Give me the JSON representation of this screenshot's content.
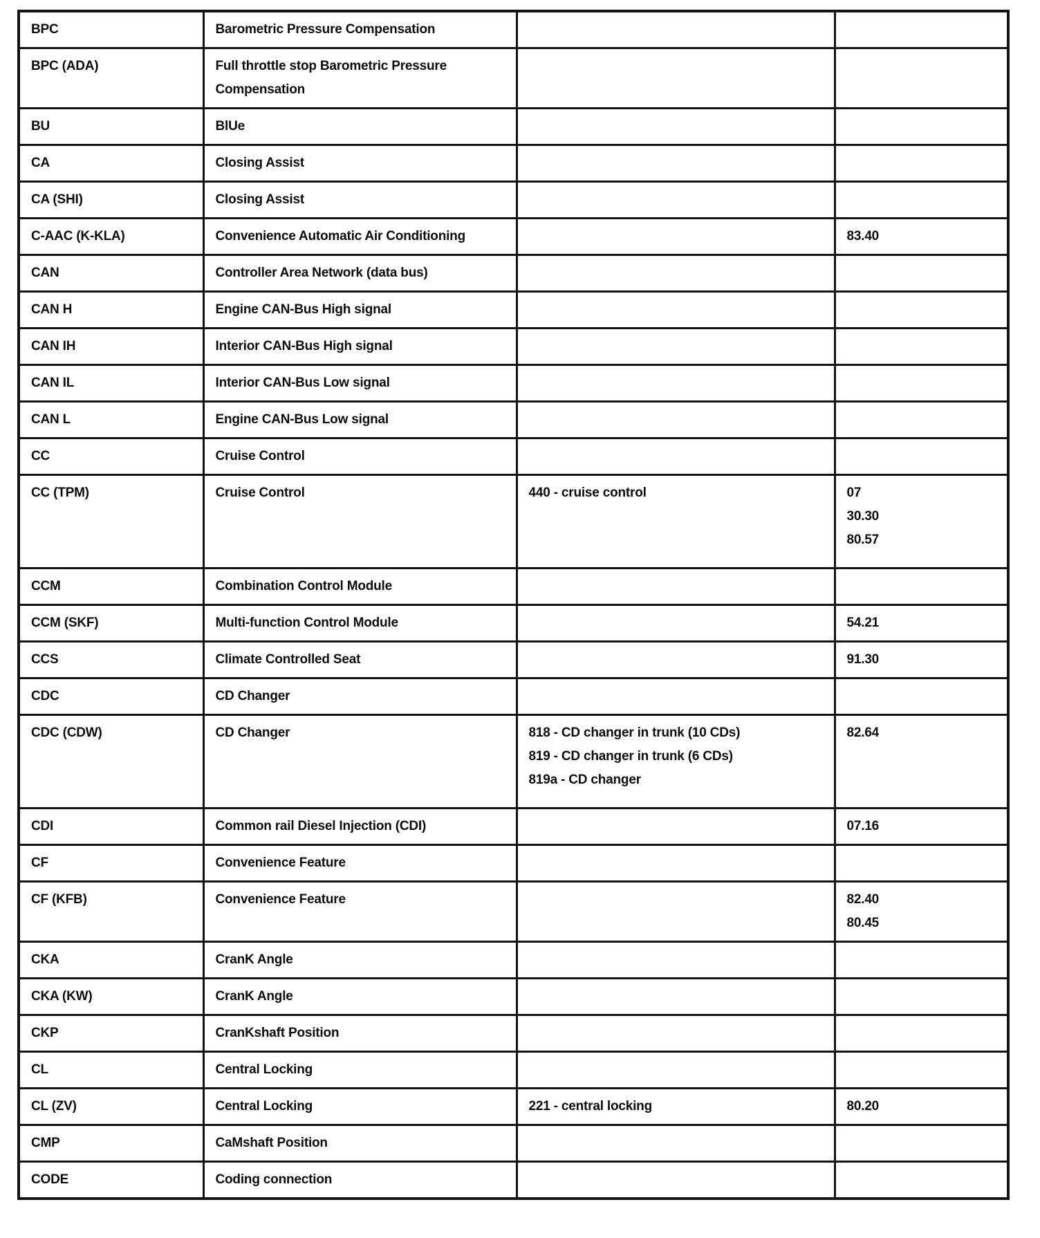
{
  "colors": {
    "background": "#ffffff",
    "border": "#131313",
    "text": "#0c0c0c"
  },
  "table": {
    "rows": [
      {
        "abbr": "BPC",
        "description": "Barometric Pressure Compensation",
        "codes": [],
        "refs": []
      },
      {
        "abbr": "BPC (ADA)",
        "description": "Full throttle stop Barometric Pressure Compensation",
        "codes": [],
        "refs": []
      },
      {
        "abbr": "BU",
        "description": "BlUe",
        "codes": [],
        "refs": []
      },
      {
        "abbr": "CA",
        "description": "Closing Assist",
        "codes": [],
        "refs": []
      },
      {
        "abbr": "CA (SHI)",
        "description": "Closing Assist",
        "codes": [],
        "refs": []
      },
      {
        "abbr": "C-AAC (K-KLA)",
        "description": "Convenience Automatic Air Conditioning",
        "codes": [],
        "refs": [
          "83.40"
        ]
      },
      {
        "abbr": "CAN",
        "description": "Controller Area Network (data bus)",
        "codes": [],
        "refs": []
      },
      {
        "abbr": "CAN H",
        "description": "Engine CAN-Bus High signal",
        "codes": [],
        "refs": []
      },
      {
        "abbr": "CAN IH",
        "description": "Interior CAN-Bus High signal",
        "codes": [],
        "refs": []
      },
      {
        "abbr": "CAN IL",
        "description": "Interior CAN-Bus Low signal",
        "codes": [],
        "refs": []
      },
      {
        "abbr": "CAN L",
        "description": "Engine CAN-Bus Low signal",
        "codes": [],
        "refs": []
      },
      {
        "abbr": "CC",
        "description": "Cruise Control",
        "codes": [],
        "refs": []
      },
      {
        "abbr": "CC (TPM)",
        "description": "Cruise Control",
        "codes": [
          "440 - cruise control"
        ],
        "refs": [
          "07",
          "30.30",
          "80.57"
        ]
      },
      {
        "abbr": "CCM",
        "description": "Combination Control Module",
        "codes": [],
        "refs": []
      },
      {
        "abbr": "CCM (SKF)",
        "description": "Multi-function Control Module",
        "codes": [],
        "refs": [
          "54.21"
        ]
      },
      {
        "abbr": "CCS",
        "description": "Climate Controlled Seat",
        "codes": [],
        "refs": [
          "91.30"
        ]
      },
      {
        "abbr": "CDC",
        "description": "CD Changer",
        "codes": [],
        "refs": []
      },
      {
        "abbr": "CDC (CDW)",
        "description": "CD Changer",
        "codes": [
          "818 - CD changer in trunk (10 CDs)",
          "819 - CD changer in trunk (6 CDs)",
          "819a - CD changer"
        ],
        "refs": [
          "82.64"
        ]
      },
      {
        "abbr": "CDI",
        "description": "Common rail Diesel Injection (CDI)",
        "codes": [],
        "refs": [
          "07.16"
        ]
      },
      {
        "abbr": "CF",
        "description": "Convenience Feature",
        "codes": [],
        "refs": []
      },
      {
        "abbr": "CF (KFB)",
        "description": "Convenience Feature",
        "codes": [],
        "refs": [
          "82.40",
          "80.45"
        ]
      },
      {
        "abbr": "CKA",
        "description": "CranK Angle",
        "codes": [],
        "refs": []
      },
      {
        "abbr": "CKA (KW)",
        "description": "CranK Angle",
        "codes": [],
        "refs": []
      },
      {
        "abbr": "CKP",
        "description": "CranKshaft Position",
        "codes": [],
        "refs": []
      },
      {
        "abbr": "CL",
        "description": "Central Locking",
        "codes": [],
        "refs": []
      },
      {
        "abbr": "CL (ZV)",
        "description": "Central Locking",
        "codes": [
          "221 - central locking"
        ],
        "refs": [
          "80.20"
        ]
      },
      {
        "abbr": "CMP",
        "description": "CaMshaft Position",
        "codes": [],
        "refs": []
      },
      {
        "abbr": "CODE",
        "description": "Coding connection",
        "codes": [],
        "refs": []
      }
    ]
  }
}
